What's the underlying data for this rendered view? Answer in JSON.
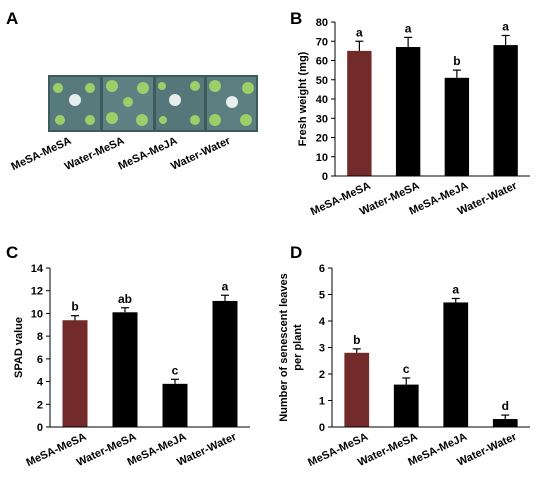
{
  "panel_a": {
    "letter": "A",
    "labels": [
      "MeSA-MeSA",
      "Water-MeSA",
      "MeSA-MeJA",
      "Water-Water"
    ]
  },
  "chart_data": [
    {
      "type": "bar",
      "letter": "B",
      "y_label": [
        "Fresh weight (mg)"
      ],
      "categories": [
        "MeSA-MeSA",
        "Water-MeSA",
        "MeSA-MeJA",
        "Water-Water"
      ],
      "values": [
        65,
        67,
        51,
        68
      ],
      "errors": [
        5,
        5,
        4,
        5
      ],
      "annotations": [
        "a",
        "a",
        "b",
        "a"
      ],
      "colors": [
        "#722a2a",
        "#000000",
        "#000000",
        "#000000"
      ],
      "ylim": [
        0,
        80
      ],
      "yticks": [
        0,
        10,
        20,
        30,
        40,
        50,
        60,
        70,
        80
      ]
    },
    {
      "type": "bar",
      "letter": "C",
      "y_label": [
        "SPAD value"
      ],
      "categories": [
        "MeSA-MeSA",
        "Water-MeSA",
        "MeSA-MeJA",
        "Water-Water"
      ],
      "values": [
        9.4,
        10.1,
        3.8,
        11.1
      ],
      "errors": [
        0.4,
        0.4,
        0.4,
        0.5
      ],
      "annotations": [
        "b",
        "ab",
        "c",
        "a"
      ],
      "colors": [
        "#722a2a",
        "#000000",
        "#000000",
        "#000000"
      ],
      "ylim": [
        0,
        14
      ],
      "yticks": [
        0,
        2,
        4,
        6,
        8,
        10,
        12,
        14
      ]
    },
    {
      "type": "bar",
      "letter": "D",
      "y_label": [
        "Number of senescent leaves",
        "per plant"
      ],
      "categories": [
        "MeSA-MeSA",
        "Water-MeSA",
        "MeSA-MeJA",
        "Water-Water"
      ],
      "values": [
        2.8,
        1.6,
        4.7,
        0.3
      ],
      "errors": [
        0.15,
        0.25,
        0.15,
        0.15
      ],
      "annotations": [
        "b",
        "c",
        "a",
        "d"
      ],
      "colors": [
        "#722a2a",
        "#000000",
        "#000000",
        "#000000"
      ],
      "ylim": [
        0,
        6
      ],
      "yticks": [
        0,
        1,
        2,
        3,
        4,
        5,
        6
      ]
    }
  ]
}
